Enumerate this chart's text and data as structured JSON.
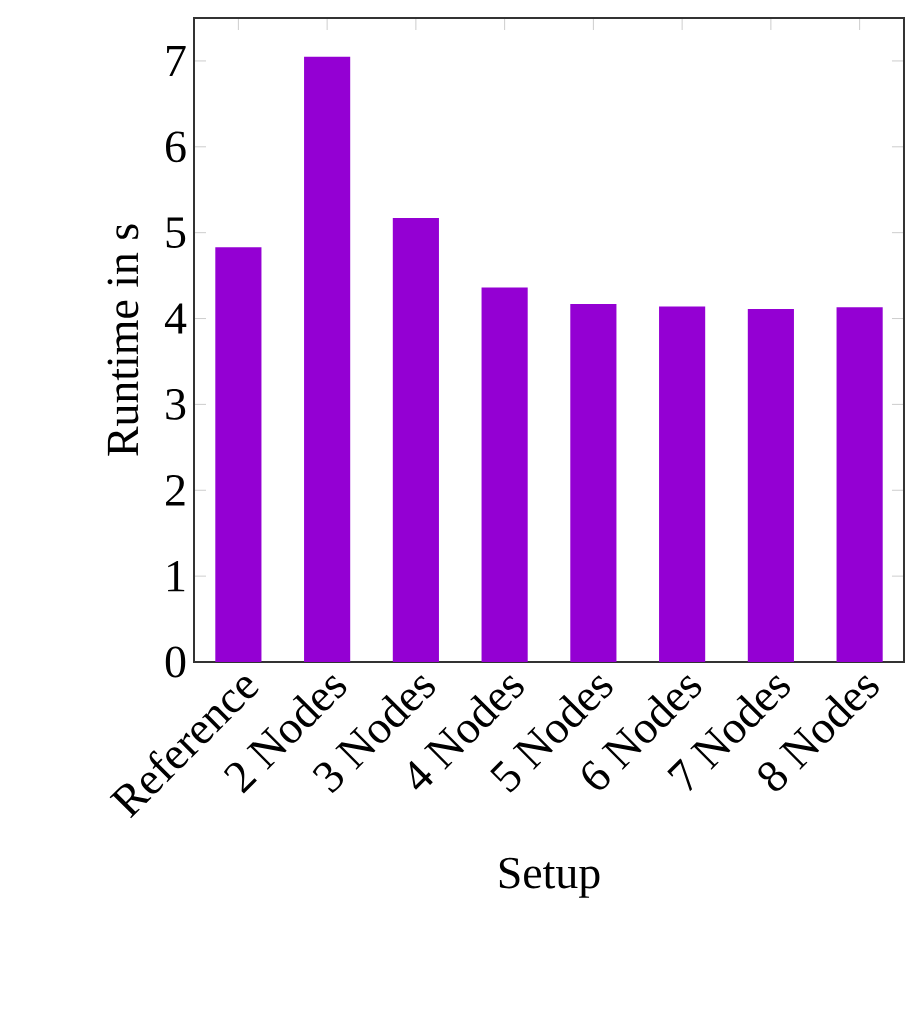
{
  "chart_data": {
    "type": "bar",
    "xlabel": "Setup",
    "ylabel": "Runtime in s",
    "categories": [
      "Reference",
      "2 Nodes",
      "3 Nodes",
      "4 Nodes",
      "5 Nodes",
      "6 Nodes",
      "7 Nodes",
      "8 Nodes"
    ],
    "values": [
      4.83,
      7.05,
      5.17,
      4.36,
      4.17,
      4.14,
      4.11,
      4.13
    ],
    "color": "#9400d3",
    "ylim": [
      0,
      7.5
    ],
    "yticks": [
      0,
      1,
      2,
      3,
      4,
      5,
      6,
      7
    ],
    "grid": false
  }
}
